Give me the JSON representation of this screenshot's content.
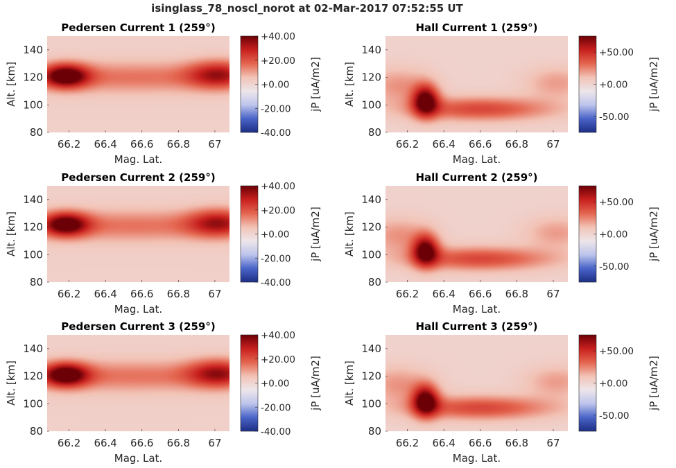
{
  "figure": {
    "title": "isinglass_78_noscl_norot at 02-Mar-2017 07:52:55 UT"
  },
  "colors": {
    "colormap": [
      "#1d2e83",
      "#4a64c8",
      "#bdc5ec",
      "#ede5ea",
      "#f2c3b6",
      "#e4654f",
      "#c8201e",
      "#6b0006"
    ],
    "background_field": "#ede5ea"
  },
  "chart_data": [
    {
      "type": "heatmap",
      "title": "Pedersen Current 1 (259°)",
      "xlabel": "Mag. Lat.",
      "ylabel": "Alt. [km]",
      "xlim": [
        66.08,
        67.08
      ],
      "ylim": [
        80,
        150
      ],
      "xticks": [
        "66.2",
        "66.4",
        "66.6",
        "66.8",
        "67"
      ],
      "yticks": [
        "80",
        "100",
        "120",
        "140"
      ],
      "colorbar": {
        "label": "jP [uA/m2]",
        "clim": [
          -40,
          40
        ],
        "ticks": [
          "+40.00",
          "+20.00",
          "+0.00",
          "-20.00",
          "-40.00"
        ]
      },
      "features": [
        {
          "lat": 66.18,
          "alt": 121,
          "peak": 40,
          "dlat": 0.09,
          "dalt": 6
        },
        {
          "lat": 66.55,
          "alt": 120,
          "peak": 14,
          "dlat": 0.45,
          "dalt": 8
        },
        {
          "lat": 67.02,
          "alt": 122,
          "peak": 26,
          "dlat": 0.12,
          "dalt": 7
        }
      ]
    },
    {
      "type": "heatmap",
      "title": "Hall Current 1 (259°)",
      "xlabel": "Mag. Lat.",
      "ylabel": "Alt. [km]",
      "xlim": [
        66.08,
        67.08
      ],
      "ylim": [
        80,
        150
      ],
      "xticks": [
        "66.2",
        "66.4",
        "66.6",
        "66.8",
        "67"
      ],
      "yticks": [
        "80",
        "100",
        "120",
        "140"
      ],
      "colorbar": {
        "label": "jP [uA/m2]",
        "clim": [
          -75,
          75
        ],
        "ticks": [
          "+50.00",
          "+0.00",
          "-50.00"
        ]
      },
      "features": [
        {
          "lat": 66.3,
          "alt": 103,
          "peak": 75,
          "dlat": 0.05,
          "dalt": 8
        },
        {
          "lat": 66.6,
          "alt": 97,
          "peak": 40,
          "dlat": 0.28,
          "dalt": 6
        },
        {
          "lat": 66.15,
          "alt": 114,
          "peak": 20,
          "dlat": 0.12,
          "dalt": 9
        },
        {
          "lat": 67.02,
          "alt": 116,
          "peak": 18,
          "dlat": 0.12,
          "dalt": 8
        }
      ]
    },
    {
      "type": "heatmap",
      "title": "Pedersen Current 2 (259°)",
      "xlabel": "Mag. Lat.",
      "ylabel": "Alt. [km]",
      "xlim": [
        66.08,
        67.08
      ],
      "ylim": [
        80,
        150
      ],
      "xticks": [
        "66.2",
        "66.4",
        "66.6",
        "66.8",
        "67"
      ],
      "yticks": [
        "80",
        "100",
        "120",
        "140"
      ],
      "colorbar": {
        "label": "jP [uA/m2]",
        "clim": [
          -40,
          40
        ],
        "ticks": [
          "+40.00",
          "+20.00",
          "+0.00",
          "-20.00",
          "-40.00"
        ]
      },
      "features": [
        {
          "lat": 66.18,
          "alt": 122,
          "peak": 38,
          "dlat": 0.09,
          "dalt": 6
        },
        {
          "lat": 66.55,
          "alt": 121,
          "peak": 14,
          "dlat": 0.45,
          "dalt": 8
        },
        {
          "lat": 67.02,
          "alt": 123,
          "peak": 26,
          "dlat": 0.12,
          "dalt": 7
        }
      ]
    },
    {
      "type": "heatmap",
      "title": "Hall Current 2 (259°)",
      "xlabel": "Mag. Lat.",
      "ylabel": "Alt. [km]",
      "xlim": [
        66.08,
        67.08
      ],
      "ylim": [
        80,
        150
      ],
      "xticks": [
        "66.2",
        "66.4",
        "66.6",
        "66.8",
        "67"
      ],
      "yticks": [
        "80",
        "100",
        "120",
        "140"
      ],
      "colorbar": {
        "label": "jP [uA/m2]",
        "clim": [
          -75,
          75
        ],
        "ticks": [
          "+50.00",
          "+0.00",
          "-50.00"
        ]
      },
      "features": [
        {
          "lat": 66.3,
          "alt": 103,
          "peak": 72,
          "dlat": 0.05,
          "dalt": 8
        },
        {
          "lat": 66.6,
          "alt": 97,
          "peak": 40,
          "dlat": 0.28,
          "dalt": 6
        },
        {
          "lat": 66.15,
          "alt": 114,
          "peak": 20,
          "dlat": 0.12,
          "dalt": 9
        },
        {
          "lat": 67.02,
          "alt": 116,
          "peak": 18,
          "dlat": 0.12,
          "dalt": 8
        }
      ]
    },
    {
      "type": "heatmap",
      "title": "Pedersen Current 3 (259°)",
      "xlabel": "Mag. Lat.",
      "ylabel": "Alt. [km]",
      "xlim": [
        66.08,
        67.08
      ],
      "ylim": [
        80,
        150
      ],
      "xticks": [
        "66.2",
        "66.4",
        "66.6",
        "66.8",
        "67"
      ],
      "yticks": [
        "80",
        "100",
        "120",
        "140"
      ],
      "colorbar": {
        "label": "jP [uA/m2]",
        "clim": [
          -40,
          40
        ],
        "ticks": [
          "+40.00",
          "+20.00",
          "+0.00",
          "-20.00",
          "-40.00"
        ]
      },
      "features": [
        {
          "lat": 66.18,
          "alt": 121,
          "peak": 40,
          "dlat": 0.09,
          "dalt": 6
        },
        {
          "lat": 66.55,
          "alt": 120,
          "peak": 14,
          "dlat": 0.45,
          "dalt": 8
        },
        {
          "lat": 67.02,
          "alt": 122,
          "peak": 27,
          "dlat": 0.12,
          "dalt": 7
        }
      ]
    },
    {
      "type": "heatmap",
      "title": "Hall Current 3 (259°)",
      "xlabel": "Mag. Lat.",
      "ylabel": "Alt. [km]",
      "xlim": [
        66.08,
        67.08
      ],
      "ylim": [
        80,
        150
      ],
      "xticks": [
        "66.2",
        "66.4",
        "66.6",
        "66.8",
        "67"
      ],
      "yticks": [
        "80",
        "100",
        "120",
        "140"
      ],
      "colorbar": {
        "label": "jP [uA/m2]",
        "clim": [
          -75,
          75
        ],
        "ticks": [
          "+50.00",
          "+0.00",
          "-50.00"
        ]
      },
      "features": [
        {
          "lat": 66.3,
          "alt": 102,
          "peak": 75,
          "dlat": 0.05,
          "dalt": 8
        },
        {
          "lat": 66.6,
          "alt": 97,
          "peak": 40,
          "dlat": 0.28,
          "dalt": 6
        },
        {
          "lat": 66.15,
          "alt": 114,
          "peak": 20,
          "dlat": 0.12,
          "dalt": 9
        },
        {
          "lat": 67.02,
          "alt": 116,
          "peak": 18,
          "dlat": 0.12,
          "dalt": 8
        }
      ]
    }
  ]
}
